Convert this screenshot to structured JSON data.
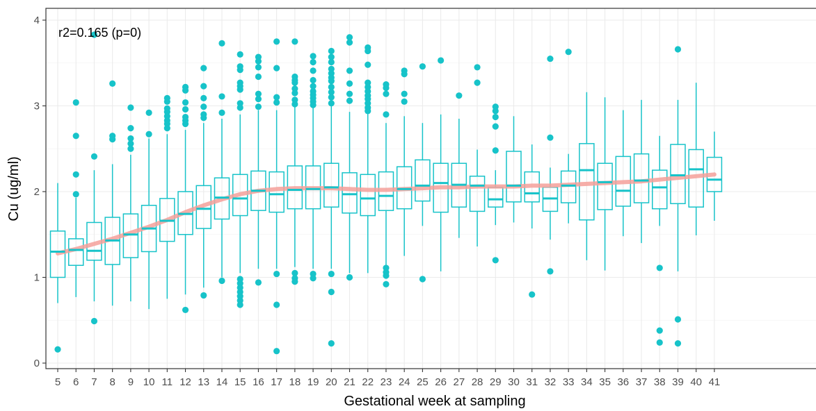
{
  "chart_data": {
    "type": "box",
    "annotation": "r2=0.165 (p=0)",
    "xlabel": "Gestational week at sampling",
    "ylabel": "Cu (ug/ml)",
    "ylim": [
      0,
      4
    ],
    "yticks": [
      0,
      1,
      2,
      3,
      4
    ],
    "categories": [
      "5",
      "6",
      "7",
      "8",
      "9",
      "10",
      "11",
      "12",
      "13",
      "14",
      "15",
      "16",
      "17",
      "18",
      "19",
      "20",
      "21",
      "22",
      "23",
      "24",
      "25",
      "26",
      "27",
      "28",
      "29",
      "30",
      "31",
      "32",
      "33",
      "34",
      "35",
      "36",
      "37",
      "38",
      "39",
      "40",
      "41"
    ],
    "grid": true,
    "colors": {
      "box": "#17c3c9",
      "smooth": "#f4a09a",
      "grid": "#ebebeb",
      "panel_border": "#333333"
    },
    "boxes": [
      {
        "week": "5",
        "lw": 0.7,
        "q1": 1.0,
        "med": 1.3,
        "q3": 1.54,
        "uw": 2.1,
        "out": [
          0.16
        ]
      },
      {
        "week": "6",
        "lw": 0.77,
        "q1": 1.14,
        "med": 1.32,
        "q3": 1.45,
        "uw": 1.93,
        "out": [
          3.04,
          2.65,
          2.2,
          1.97
        ]
      },
      {
        "week": "7",
        "lw": 0.72,
        "q1": 1.2,
        "med": 1.31,
        "q3": 1.64,
        "uw": 2.25,
        "out": [
          3.83,
          2.41,
          0.49
        ]
      },
      {
        "week": "8",
        "lw": 0.67,
        "q1": 1.15,
        "med": 1.43,
        "q3": 1.7,
        "uw": 2.32,
        "out": [
          3.26,
          2.65,
          2.61
        ]
      },
      {
        "week": "9",
        "lw": 0.72,
        "q1": 1.23,
        "med": 1.5,
        "q3": 1.74,
        "uw": 2.43,
        "out": [
          2.98,
          2.74,
          2.62,
          2.56,
          2.5
        ]
      },
      {
        "week": "10",
        "lw": 0.63,
        "q1": 1.3,
        "med": 1.57,
        "q3": 1.84,
        "uw": 2.62,
        "out": [
          2.92,
          2.67
        ]
      },
      {
        "week": "11",
        "lw": 0.75,
        "q1": 1.42,
        "med": 1.66,
        "q3": 1.92,
        "uw": 2.67,
        "out": [
          3.09,
          3.05,
          2.97,
          2.93,
          2.88,
          2.83,
          2.79,
          2.74
        ]
      },
      {
        "week": "12",
        "lw": 0.8,
        "q1": 1.5,
        "med": 1.74,
        "q3": 2.0,
        "uw": 2.72,
        "out": [
          3.22,
          3.18,
          3.04,
          2.96,
          2.87,
          2.83,
          2.79,
          0.62
        ]
      },
      {
        "week": "13",
        "lw": 0.88,
        "q1": 1.57,
        "med": 1.8,
        "q3": 2.07,
        "uw": 2.8,
        "out": [
          3.44,
          3.23,
          3.09,
          2.99,
          2.9,
          2.86,
          0.79
        ]
      },
      {
        "week": "14",
        "lw": 1.0,
        "q1": 1.68,
        "med": 1.93,
        "q3": 2.16,
        "uw": 2.85,
        "out": [
          3.73,
          3.11,
          2.92,
          0.96
        ]
      },
      {
        "week": "15",
        "lw": 1.05,
        "q1": 1.72,
        "med": 1.92,
        "q3": 2.2,
        "uw": 2.9,
        "out": [
          3.6,
          3.46,
          3.42,
          3.27,
          3.23,
          3.19,
          3.03,
          2.98,
          0.98,
          0.93,
          0.88,
          0.83,
          0.78,
          0.73,
          0.68
        ]
      },
      {
        "week": "16",
        "lw": 1.1,
        "q1": 1.78,
        "med": 2.01,
        "q3": 2.24,
        "uw": 2.95,
        "out": [
          3.57,
          3.52,
          3.45,
          3.34,
          3.14,
          3.08,
          2.99,
          0.94
        ]
      },
      {
        "week": "17",
        "lw": 1.1,
        "q1": 1.76,
        "med": 1.97,
        "q3": 2.23,
        "uw": 2.95,
        "out": [
          3.75,
          3.44,
          3.1,
          3.04,
          1.04,
          0.68,
          0.14
        ]
      },
      {
        "week": "18",
        "lw": 1.12,
        "q1": 1.8,
        "med": 2.02,
        "q3": 2.3,
        "uw": 3.0,
        "out": [
          3.75,
          3.34,
          3.3,
          3.27,
          3.2,
          3.15,
          3.07,
          3.02,
          1.05,
          0.99,
          0.95
        ]
      },
      {
        "week": "19",
        "lw": 1.1,
        "q1": 1.8,
        "med": 2.03,
        "q3": 2.3,
        "uw": 3.0,
        "out": [
          3.58,
          3.51,
          3.41,
          3.3,
          3.23,
          3.17,
          3.13,
          3.09,
          3.05,
          3.01,
          1.04,
          0.99
        ]
      },
      {
        "week": "20",
        "lw": 1.1,
        "q1": 1.82,
        "med": 2.05,
        "q3": 2.33,
        "uw": 3.02,
        "out": [
          3.64,
          3.57,
          3.51,
          3.43,
          3.38,
          3.33,
          3.29,
          3.22,
          3.16,
          3.1,
          3.03,
          1.04,
          0.83,
          0.23
        ]
      },
      {
        "week": "21",
        "lw": 1.05,
        "q1": 1.75,
        "med": 1.97,
        "q3": 2.22,
        "uw": 2.93,
        "out": [
          3.8,
          3.74,
          3.41,
          3.26,
          3.14,
          3.06,
          1.0
        ]
      },
      {
        "week": "22",
        "lw": 1.05,
        "q1": 1.72,
        "med": 1.92,
        "q3": 2.2,
        "uw": 2.93,
        "out": [
          3.68,
          3.64,
          3.48,
          3.27,
          3.22,
          3.17,
          3.12,
          3.08,
          3.03,
          2.98,
          2.94
        ]
      },
      {
        "week": "23",
        "lw": 1.13,
        "q1": 1.78,
        "med": 1.95,
        "q3": 2.23,
        "uw": 2.8,
        "out": [
          3.25,
          3.21,
          3.14,
          2.9,
          1.11,
          1.06,
          1.02,
          0.92
        ]
      },
      {
        "week": "24",
        "lw": 1.25,
        "q1": 1.8,
        "med": 2.03,
        "q3": 2.29,
        "uw": 2.88,
        "out": [
          3.41,
          3.37,
          3.14,
          3.05
        ]
      },
      {
        "week": "25",
        "lw": 1.6,
        "q1": 1.89,
        "med": 2.07,
        "q3": 2.37,
        "uw": 2.8,
        "out": [
          3.46,
          0.98
        ]
      },
      {
        "week": "26",
        "lw": 1.07,
        "q1": 1.76,
        "med": 2.1,
        "q3": 2.33,
        "uw": 2.9,
        "out": [
          3.53
        ]
      },
      {
        "week": "27",
        "lw": 1.46,
        "q1": 1.82,
        "med": 2.08,
        "q3": 2.33,
        "uw": 2.85,
        "out": [
          3.12
        ]
      },
      {
        "week": "28",
        "lw": 1.36,
        "q1": 1.77,
        "med": 2.07,
        "q3": 2.18,
        "uw": 2.49,
        "out": [
          3.45,
          3.27
        ]
      },
      {
        "week": "29",
        "lw": 1.61,
        "q1": 1.82,
        "med": 1.91,
        "q3": 2.05,
        "uw": 2.25,
        "out": [
          2.99,
          2.94,
          2.87,
          2.76,
          2.48,
          1.2
        ]
      },
      {
        "week": "30",
        "lw": 1.64,
        "q1": 1.88,
        "med": 2.07,
        "q3": 2.47,
        "uw": 2.88,
        "out": []
      },
      {
        "week": "31",
        "lw": 1.57,
        "q1": 1.88,
        "med": 1.98,
        "q3": 2.23,
        "uw": 2.55,
        "out": [
          0.8
        ]
      },
      {
        "week": "32",
        "lw": 1.44,
        "q1": 1.77,
        "med": 1.92,
        "q3": 2.05,
        "uw": 2.28,
        "out": [
          3.55,
          2.63,
          1.07
        ]
      },
      {
        "week": "33",
        "lw": 1.63,
        "q1": 1.87,
        "med": 2.07,
        "q3": 2.24,
        "uw": 2.44,
        "out": [
          3.63
        ]
      },
      {
        "week": "34",
        "lw": 1.2,
        "q1": 1.67,
        "med": 2.25,
        "q3": 2.56,
        "uw": 3.16,
        "out": []
      },
      {
        "week": "35",
        "lw": 1.08,
        "q1": 1.79,
        "med": 2.11,
        "q3": 2.33,
        "uw": 3.1,
        "out": []
      },
      {
        "week": "36",
        "lw": 1.48,
        "q1": 1.83,
        "med": 2.01,
        "q3": 2.41,
        "uw": 2.95,
        "out": []
      },
      {
        "week": "37",
        "lw": 1.4,
        "q1": 1.87,
        "med": 2.13,
        "q3": 2.44,
        "uw": 3.07,
        "out": []
      },
      {
        "week": "38",
        "lw": 1.6,
        "q1": 1.8,
        "med": 2.05,
        "q3": 2.25,
        "uw": 2.65,
        "out": [
          1.11,
          0.38,
          0.24
        ]
      },
      {
        "week": "39",
        "lw": 1.07,
        "q1": 1.86,
        "med": 2.19,
        "q3": 2.55,
        "uw": 3.07,
        "out": [
          3.66,
          0.51,
          0.23
        ]
      },
      {
        "week": "40",
        "lw": 1.49,
        "q1": 1.82,
        "med": 2.26,
        "q3": 2.49,
        "uw": 3.27,
        "out": []
      },
      {
        "week": "41",
        "lw": 1.66,
        "q1": 2.0,
        "med": 2.14,
        "q3": 2.4,
        "uw": 2.7,
        "out": []
      }
    ],
    "smooth": {
      "x": [
        5,
        6,
        7,
        8,
        9,
        10,
        11,
        12,
        13,
        14,
        15,
        16,
        17,
        18,
        19,
        20,
        21,
        22,
        23,
        24,
        25,
        26,
        27,
        28,
        29,
        30,
        31,
        32,
        33,
        34,
        35,
        36,
        37,
        38,
        39,
        40,
        41
      ],
      "y": [
        1.28,
        1.33,
        1.39,
        1.45,
        1.52,
        1.59,
        1.67,
        1.76,
        1.84,
        1.91,
        1.97,
        2.01,
        2.03,
        2.04,
        2.04,
        2.04,
        2.03,
        2.02,
        2.02,
        2.03,
        2.04,
        2.05,
        2.05,
        2.06,
        2.06,
        2.06,
        2.07,
        2.07,
        2.08,
        2.09,
        2.1,
        2.11,
        2.12,
        2.14,
        2.16,
        2.18,
        2.2
      ]
    }
  }
}
